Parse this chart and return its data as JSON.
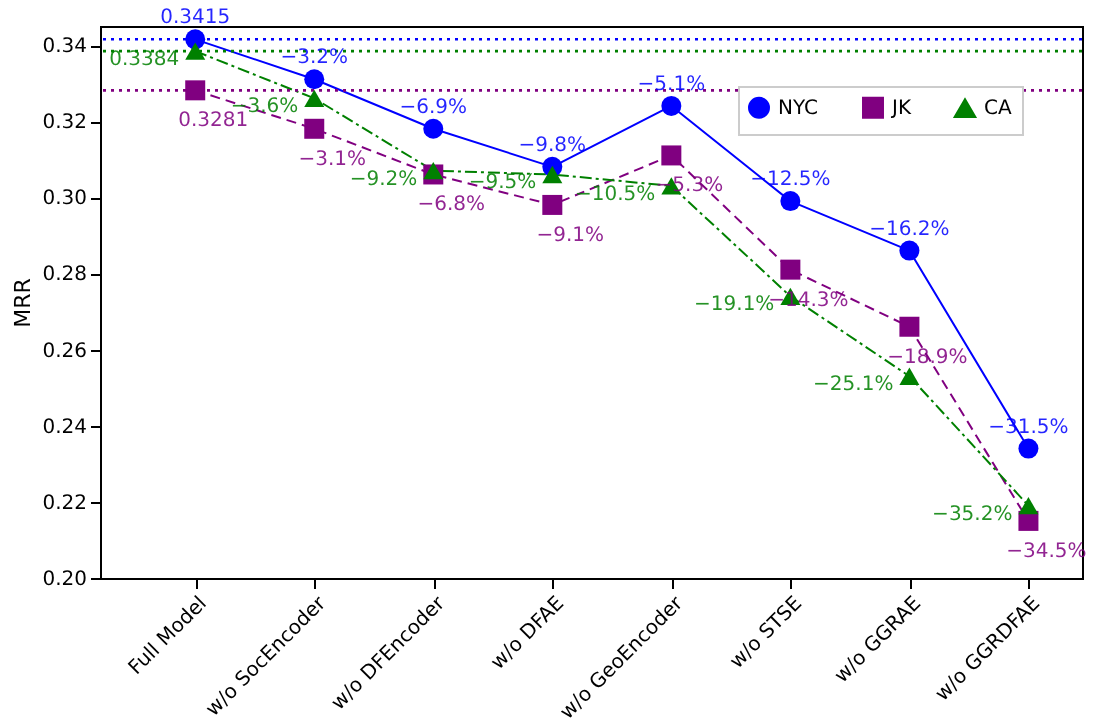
{
  "chart_data": {
    "type": "line",
    "ylabel": "MRR",
    "categories": [
      "Full Model",
      "w/o SocEncoder",
      "w/o DFEncoder",
      "w/o DFAE",
      "w/o GeoEncoder",
      "w/o STSE",
      "w/o GGRAE",
      "w/o GGRDFAE"
    ],
    "series": [
      {
        "name": "NYC",
        "color": "#0000ff",
        "marker": "circle",
        "line_style": "solid",
        "values": [
          0.3415,
          0.331,
          0.318,
          0.308,
          0.324,
          0.299,
          0.286,
          0.234
        ],
        "value_labels": [
          "0.3415",
          null,
          null,
          null,
          null,
          null,
          null,
          null
        ]
      },
      {
        "name": "JK",
        "color": "#800080",
        "marker": "square",
        "line_style": "dashed",
        "values": [
          0.3281,
          0.318,
          0.306,
          0.298,
          0.311,
          0.281,
          0.266,
          0.215
        ],
        "value_labels": [
          "0.3281",
          null,
          null,
          null,
          null,
          null,
          null,
          null
        ]
      },
      {
        "name": "CA",
        "color": "#008000",
        "marker": "triangle",
        "line_style": "dashdot",
        "values": [
          0.3384,
          0.326,
          0.307,
          0.306,
          0.303,
          0.274,
          0.253,
          0.219
        ],
        "value_labels": [
          "0.3384",
          null,
          null,
          null,
          null,
          null,
          null,
          null
        ]
      }
    ],
    "annotations": [
      {
        "text": "−3.2%",
        "x": "w/o SocEncoder",
        "y": 0.331
      },
      {
        "text": "−6.9%",
        "x": "w/o DFEncoder",
        "y": 0.318
      },
      {
        "text": "−9.8%",
        "x": "w/o DFAE",
        "y": 0.308
      },
      {
        "text": "−5.1%",
        "x": "w/o GeoEncoder",
        "y": 0.324
      },
      {
        "text": "−12.5%",
        "x": "w/o STSE",
        "y": 0.299
      },
      {
        "text": "−16.2%",
        "x": "w/o GGRAE",
        "y": 0.286
      },
      {
        "text": "−31.5%",
        "x": "w/o GGRDFAE",
        "y": 0.234
      },
      {
        "text": "−3.1%",
        "x": "w/o SocEncoder",
        "y": 0.318
      },
      {
        "text": "−6.8%",
        "x": "w/o DFEncoder",
        "y": 0.306
      },
      {
        "text": "−9.1%",
        "x": "w/o DFAE",
        "y": 0.298
      },
      {
        "text": "−5.3%",
        "x": "w/o GeoEncoder",
        "y": 0.311
      },
      {
        "text": "−14.3%",
        "x": "w/o STSE",
        "y": 0.281
      },
      {
        "text": "−18.9%",
        "x": "w/o GGRAE",
        "y": 0.266
      },
      {
        "text": "−34.5%",
        "x": "w/o GGRDFAE",
        "y": 0.215
      },
      {
        "text": "−3.6%",
        "x": "w/o SocEncoder",
        "y": 0.326
      },
      {
        "text": "−9.2%",
        "x": "w/o DFEncoder",
        "y": 0.307
      },
      {
        "text": "−9.5%",
        "x": "w/o DFAE",
        "y": 0.306
      },
      {
        "text": "−10.5%",
        "x": "w/o GeoEncoder",
        "y": 0.303
      },
      {
        "text": "−19.1%",
        "x": "w/o STSE",
        "y": 0.274
      },
      {
        "text": "−25.1%",
        "x": "w/o GGRAE",
        "y": 0.253
      },
      {
        "text": "−35.2%",
        "x": "w/o GGRDFAE",
        "y": 0.219
      }
    ],
    "ref_lines": [
      {
        "axis": "y",
        "value": 0.3415,
        "color": "#0000ff",
        "line_style": "dotted"
      },
      {
        "axis": "y",
        "value": 0.3384,
        "color": "#008000",
        "line_style": "dotted"
      },
      {
        "axis": "y",
        "value": 0.3281,
        "color": "#800080",
        "line_style": "dotted"
      }
    ],
    "ylim": [
      0.2,
      0.345
    ],
    "yticks": [
      {
        "value": 0.2,
        "label": "0.20"
      },
      {
        "value": 0.22,
        "label": "0.22"
      },
      {
        "value": 0.24,
        "label": "0.24"
      },
      {
        "value": 0.26,
        "label": "0.26"
      },
      {
        "value": 0.28,
        "label": "0.28"
      },
      {
        "value": 0.3,
        "label": "0.30"
      },
      {
        "value": 0.32,
        "label": "0.32"
      },
      {
        "value": 0.34,
        "label": "0.34"
      }
    ],
    "grid": false,
    "legend": "top right"
  }
}
